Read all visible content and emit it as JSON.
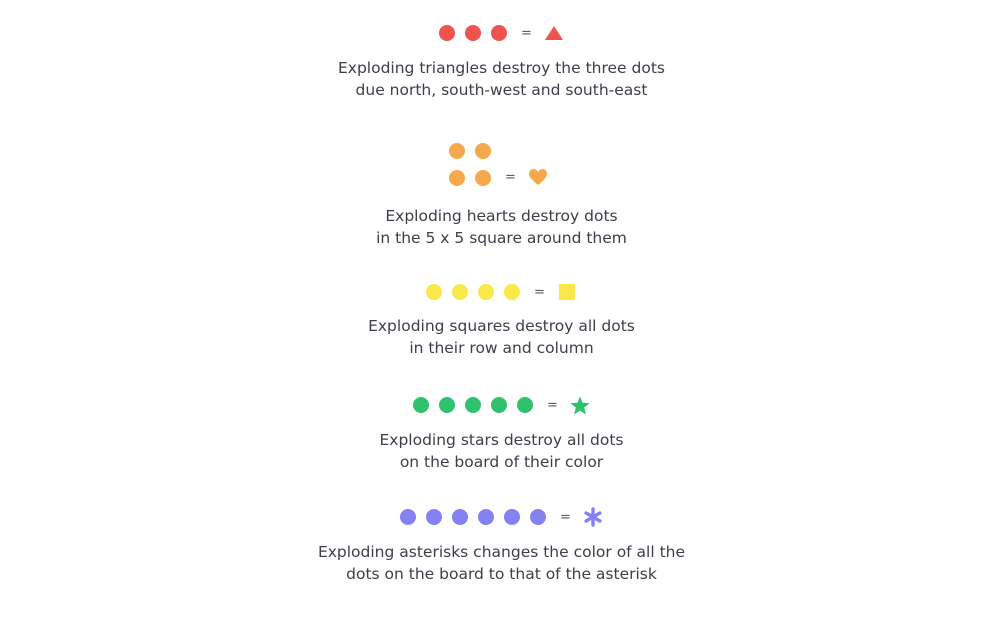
{
  "equals_label": "=",
  "rules": [
    {
      "name": "triangle",
      "color": "#ef5350",
      "dot_count": 3,
      "symbol_icon": "triangle-icon",
      "line1": "Exploding triangles destroy the three dots",
      "line2": "due north, south-west and south-east"
    },
    {
      "name": "heart",
      "color": "#f5a94a",
      "dot_count": 4,
      "arrangement": "2x2 grid",
      "symbol_icon": "heart-icon",
      "line1": "Exploding hearts destroy dots",
      "line2": "in the 5 x 5 square around them"
    },
    {
      "name": "square",
      "color": "#f8e948",
      "dot_count": 4,
      "symbol_icon": "square-icon",
      "line1": "Exploding squares destroy all dots",
      "line2": "in their row and column"
    },
    {
      "name": "star",
      "color": "#2ec26f",
      "dot_count": 5,
      "symbol_icon": "star-icon",
      "line1": "Exploding stars destroy all dots",
      "line2": "on the board of their color"
    },
    {
      "name": "asterisk",
      "color": "#8481f4",
      "dot_count": 6,
      "symbol_icon": "asterisk-icon",
      "line1": "Exploding asterisks changes the color of all the",
      "line2": "dots on the board to that of the asterisk"
    }
  ]
}
